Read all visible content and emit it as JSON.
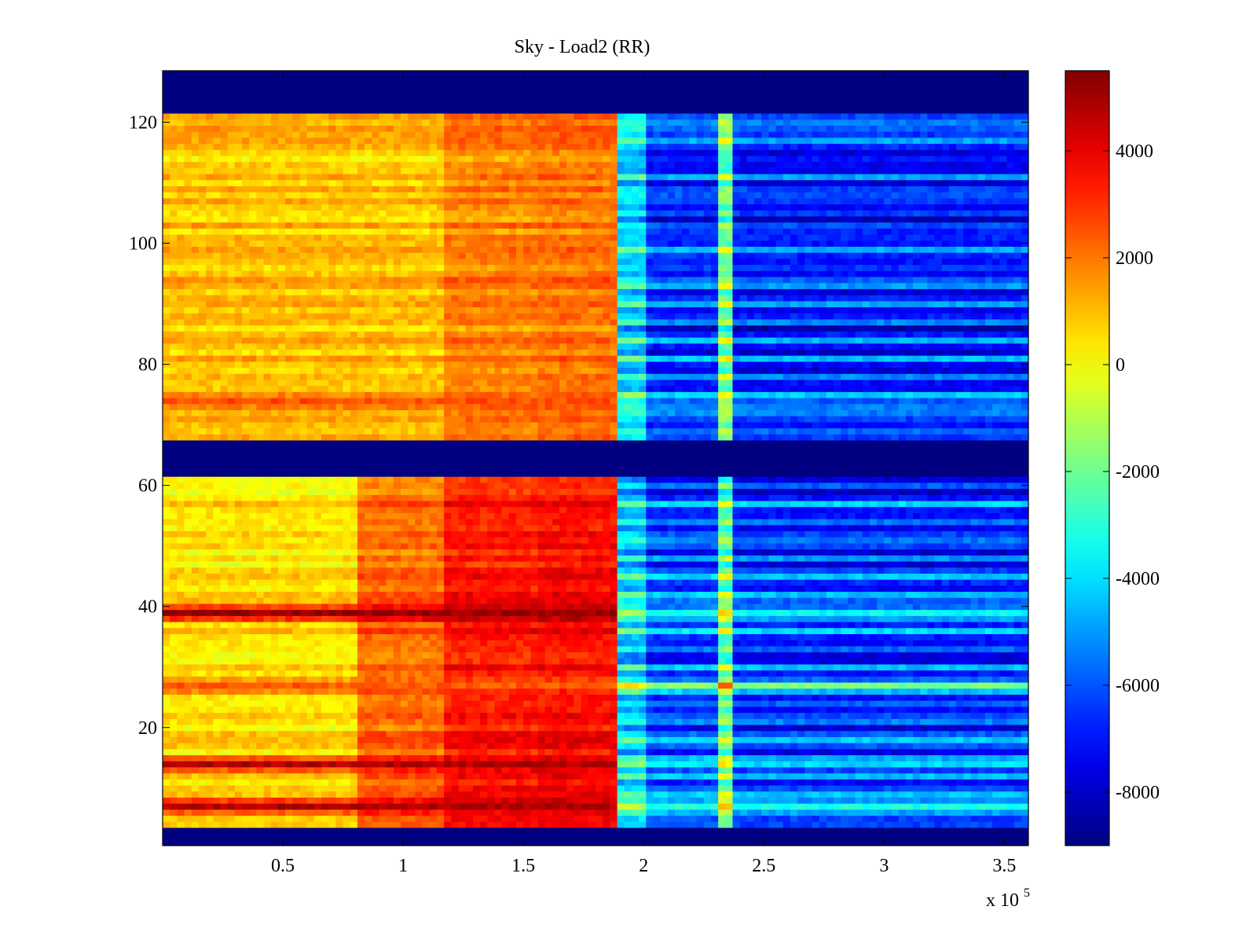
{
  "chart_data": {
    "type": "heatmap",
    "title": "Sky - Load2 (RR)",
    "xlabel": "",
    "ylabel": "",
    "x_multiplier_label": "x 10",
    "x_multiplier_exponent": "5",
    "xlim": [
      0.0,
      3.6
    ],
    "ylim": [
      0.5,
      128.5
    ],
    "x_ticks": [
      {
        "value": 0.5,
        "label": "0.5"
      },
      {
        "value": 1.0,
        "label": "1"
      },
      {
        "value": 1.5,
        "label": "1.5"
      },
      {
        "value": 2.0,
        "label": "2"
      },
      {
        "value": 2.5,
        "label": "2.5"
      },
      {
        "value": 3.0,
        "label": "3"
      },
      {
        "value": 3.5,
        "label": "3.5"
      }
    ],
    "y_ticks": [
      {
        "value": 20,
        "label": "20"
      },
      {
        "value": 40,
        "label": "40"
      },
      {
        "value": 60,
        "label": "60"
      },
      {
        "value": 80,
        "label": "80"
      },
      {
        "value": 100,
        "label": "100"
      },
      {
        "value": 120,
        "label": "120"
      }
    ],
    "colormap": "jet",
    "clim": [
      -9000,
      5500
    ],
    "colorbar_ticks": [
      {
        "value": 4000,
        "label": "4000"
      },
      {
        "value": 2000,
        "label": "2000"
      },
      {
        "value": 0,
        "label": "0"
      },
      {
        "value": -2000,
        "label": "-2000"
      },
      {
        "value": -4000,
        "label": "-4000"
      },
      {
        "value": -6000,
        "label": "-6000"
      },
      {
        "value": -8000,
        "label": "-8000"
      }
    ],
    "masked_rows": [
      [
        1,
        3
      ],
      [
        62,
        67
      ],
      [
        122,
        128
      ]
    ],
    "masked_value": -9000,
    "x_regions": [
      {
        "from": 0.0,
        "to": 0.8,
        "lower_block": 500,
        "upper_block": 900
      },
      {
        "from": 0.8,
        "to": 1.18,
        "lower_block": 2200,
        "upper_block": 900
      },
      {
        "from": 1.18,
        "to": 1.55,
        "lower_block": 3400,
        "upper_block": 1800
      },
      {
        "from": 1.55,
        "to": 1.9,
        "lower_block": 3600,
        "upper_block": 2000
      },
      {
        "from": 1.9,
        "to": 2.02,
        "lower_block": -4500,
        "upper_block": -4500
      },
      {
        "from": 2.02,
        "to": 2.3,
        "lower_block": -6500,
        "upper_block": -7000
      },
      {
        "from": 2.3,
        "to": 2.36,
        "lower_block": -2500,
        "upper_block": -2500
      },
      {
        "from": 2.36,
        "to": 3.6,
        "lower_block": -6800,
        "upper_block": -7200
      }
    ],
    "notable_rows": [
      {
        "y": 39,
        "description": "strong maximum near 1.5 to 1.9",
        "peak": 5200
      },
      {
        "y": 14,
        "description": "strong band",
        "peak": 4800
      },
      {
        "y": 7,
        "description": "strong band",
        "peak": 4800
      },
      {
        "y": 74,
        "description": "warm line across low x",
        "peak": 2600
      },
      {
        "y": 27,
        "description": "warm line across low x",
        "peak": 2400
      }
    ]
  }
}
